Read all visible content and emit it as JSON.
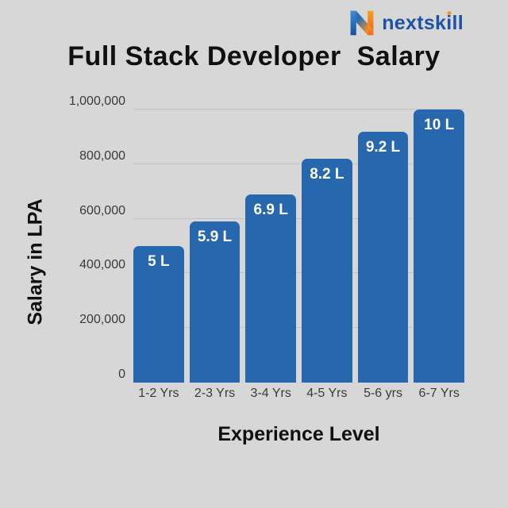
{
  "brand": {
    "name": "nextskill",
    "text_before_i": "nextsk",
    "text_i": "i",
    "text_after_i": "ll",
    "colors": {
      "blue": "#1d53a6",
      "blue_light": "#3e8ed0",
      "orange": "#f6921e",
      "orange_dark": "#ee6a22"
    }
  },
  "chart_data": {
    "type": "bar",
    "title": "Full Stack Developer  Salary",
    "xlabel": "Experience Level",
    "ylabel": "Salary in LPA",
    "categories": [
      "1-2 Yrs",
      "2-3 Yrs",
      "3-4 Yrs",
      "4-5 Yrs",
      "5-6 yrs",
      "6-7 Yrs"
    ],
    "values": [
      500000,
      590000,
      690000,
      820000,
      920000,
      1000000
    ],
    "bar_labels": [
      "5 L",
      "5.9 L",
      "6.9 L",
      "8.2 L",
      "9.2 L",
      "10 L"
    ],
    "y_ticks": [
      {
        "label": "0",
        "value": 0
      },
      {
        "label": "200,000",
        "value": 200000
      },
      {
        "label": "400,000",
        "value": 400000
      },
      {
        "label": "600,000",
        "value": 600000
      },
      {
        "label": "800,000",
        "value": 800000
      },
      {
        "label": "1,000,000",
        "value": 1000000
      }
    ],
    "ylim": [
      0,
      1000000
    ],
    "grid": "horizontal",
    "legend": "none",
    "bar_color": "#2767ae",
    "background": "#d7d7d7"
  }
}
